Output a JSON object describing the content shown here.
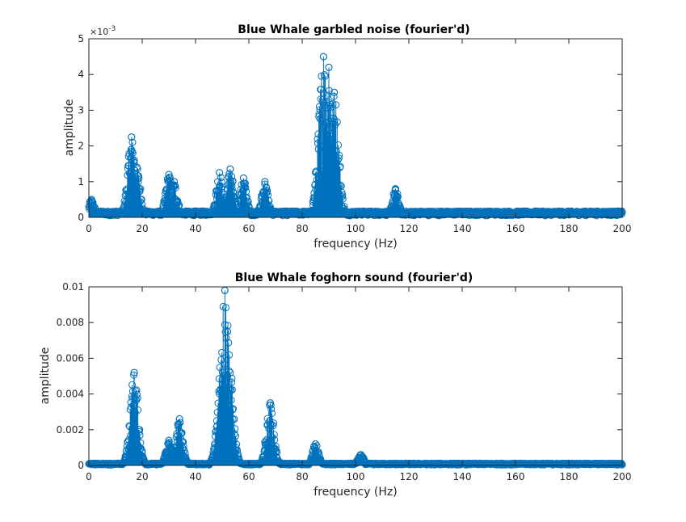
{
  "chart_data": [
    {
      "type": "stem",
      "title": "Blue Whale garbled noise (fourier'd)",
      "xlabel": "frequency (Hz)",
      "ylabel": "amplitude",
      "xlim": [
        0,
        200
      ],
      "ylim": [
        0,
        0.005
      ],
      "x_ticks": [
        "0",
        "20",
        "40",
        "60",
        "80",
        "100",
        "120",
        "140",
        "160",
        "180",
        "200"
      ],
      "y_ticks": [
        "0",
        "1",
        "2",
        "3",
        "4",
        "5"
      ],
      "y_exponent": "-3",
      "marker": "circle",
      "color": "#0072BD",
      "grid": false,
      "peaks": [
        {
          "x": 1,
          "y": 0.0005
        },
        {
          "x": 16,
          "y": 0.00225
        },
        {
          "x": 17,
          "y": 0.0016
        },
        {
          "x": 18,
          "y": 0.0014
        },
        {
          "x": 30,
          "y": 0.0012
        },
        {
          "x": 32,
          "y": 0.001
        },
        {
          "x": 49,
          "y": 0.00125
        },
        {
          "x": 53,
          "y": 0.00135
        },
        {
          "x": 58,
          "y": 0.0011
        },
        {
          "x": 66,
          "y": 0.001
        },
        {
          "x": 88,
          "y": 0.0045
        },
        {
          "x": 90,
          "y": 0.0042
        },
        {
          "x": 92,
          "y": 0.0035
        },
        {
          "x": 115,
          "y": 0.0008
        }
      ]
    },
    {
      "type": "stem",
      "title": "Blue Whale foghorn sound (fourier'd)",
      "xlabel": "frequency (Hz)",
      "ylabel": "amplitude",
      "xlim": [
        0,
        200
      ],
      "ylim": [
        0,
        0.01
      ],
      "x_ticks": [
        "0",
        "20",
        "40",
        "60",
        "80",
        "100",
        "120",
        "140",
        "160",
        "180",
        "200"
      ],
      "y_ticks": [
        "0",
        "0.002",
        "0.004",
        "0.006",
        "0.008",
        "0.01"
      ],
      "marker": "circle",
      "color": "#0072BD",
      "grid": false,
      "peaks": [
        {
          "x": 17,
          "y": 0.0052
        },
        {
          "x": 30,
          "y": 0.0014
        },
        {
          "x": 34,
          "y": 0.0026
        },
        {
          "x": 49,
          "y": 0.0015
        },
        {
          "x": 51,
          "y": 0.0098
        },
        {
          "x": 52,
          "y": 0.0075
        },
        {
          "x": 68,
          "y": 0.0035
        },
        {
          "x": 85,
          "y": 0.0012
        },
        {
          "x": 102,
          "y": 0.0006
        }
      ]
    }
  ]
}
